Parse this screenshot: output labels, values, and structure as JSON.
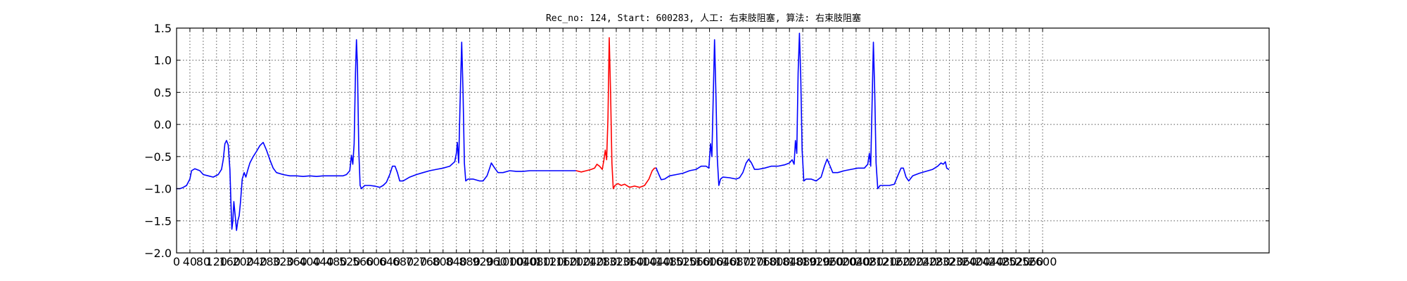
{
  "chart_data": {
    "type": "line",
    "title": "Rec_no: 124, Start: 600283, 人工: 右束肢阻塞, 算法: 右束肢阻塞",
    "xlabel": "",
    "ylabel": "",
    "xlim": [
      0,
      3280
    ],
    "ylim": [
      -2.0,
      1.5
    ],
    "grid": true,
    "x_tick_step": 40,
    "x_tick_labels": [
      "0",
      "40",
      "80",
      "120",
      "160",
      "200",
      "240",
      "280",
      "320",
      "360",
      "400",
      "440",
      "480",
      "520",
      "560",
      "600",
      "640",
      "680",
      "720",
      "760",
      "800",
      "840",
      "880",
      "920",
      "960",
      "1000",
      "1040",
      "1080",
      "1120",
      "1160",
      "1200",
      "1240",
      "1280",
      "1320",
      "1360",
      "1400",
      "1440",
      "1480",
      "1520",
      "1560",
      "1600",
      "1640",
      "1680",
      "1720",
      "1760",
      "1800",
      "1840",
      "1880",
      "1920",
      "1960",
      "2000",
      "2040",
      "2080",
      "2120",
      "2160",
      "2200",
      "2240",
      "2280",
      "2320",
      "2360",
      "2400",
      "2440",
      "2480",
      "2520",
      "2560",
      "2600"
    ],
    "y_ticks": [
      1.5,
      1.0,
      0.5,
      0.0,
      -0.5,
      -1.0,
      -1.5,
      -2.0
    ],
    "y_tick_labels": [
      "1.5",
      "1.0",
      "0.5",
      "0.0",
      "−0.5",
      "−1.0",
      "−1.5",
      "−2.0"
    ],
    "highlight": {
      "x_start": 1200,
      "x_end": 1440,
      "color": "#ff0000"
    },
    "series": [
      {
        "color": "#0000ff",
        "points": [
          [
            0,
            -1.0
          ],
          [
            10,
            -1.0
          ],
          [
            20,
            -0.98
          ],
          [
            30,
            -0.95
          ],
          [
            40,
            -0.85
          ],
          [
            45,
            -0.72
          ],
          [
            55,
            -0.69
          ],
          [
            70,
            -0.72
          ],
          [
            80,
            -0.78
          ],
          [
            95,
            -0.8
          ],
          [
            110,
            -0.82
          ],
          [
            125,
            -0.78
          ],
          [
            135,
            -0.7
          ],
          [
            140,
            -0.55
          ],
          [
            145,
            -0.3
          ],
          [
            150,
            -0.25
          ],
          [
            155,
            -0.32
          ],
          [
            160,
            -0.7
          ],
          [
            163,
            -1.2
          ],
          [
            166,
            -1.63
          ],
          [
            169,
            -1.5
          ],
          [
            172,
            -1.2
          ],
          [
            176,
            -1.42
          ],
          [
            180,
            -1.65
          ],
          [
            184,
            -1.5
          ],
          [
            188,
            -1.42
          ],
          [
            192,
            -1.2
          ],
          [
            197,
            -0.85
          ],
          [
            203,
            -0.75
          ],
          [
            208,
            -0.82
          ],
          [
            213,
            -0.72
          ],
          [
            220,
            -0.6
          ],
          [
            230,
            -0.5
          ],
          [
            240,
            -0.42
          ],
          [
            250,
            -0.33
          ],
          [
            260,
            -0.28
          ],
          [
            270,
            -0.4
          ],
          [
            280,
            -0.55
          ],
          [
            290,
            -0.68
          ],
          [
            300,
            -0.75
          ],
          [
            320,
            -0.78
          ],
          [
            340,
            -0.8
          ],
          [
            360,
            -0.8
          ],
          [
            380,
            -0.81
          ],
          [
            400,
            -0.8
          ],
          [
            420,
            -0.81
          ],
          [
            440,
            -0.8
          ],
          [
            460,
            -0.8
          ],
          [
            480,
            -0.8
          ],
          [
            500,
            -0.8
          ],
          [
            510,
            -0.78
          ],
          [
            520,
            -0.72
          ],
          [
            525,
            -0.48
          ],
          [
            529,
            -0.62
          ],
          [
            533,
            -0.3
          ],
          [
            537,
            0.8
          ],
          [
            540,
            1.32
          ],
          [
            543,
            0.9
          ],
          [
            547,
            -0.4
          ],
          [
            551,
            -0.95
          ],
          [
            555,
            -1.0
          ],
          [
            565,
            -0.95
          ],
          [
            580,
            -0.95
          ],
          [
            595,
            -0.96
          ],
          [
            610,
            -0.98
          ],
          [
            620,
            -0.95
          ],
          [
            630,
            -0.9
          ],
          [
            640,
            -0.78
          ],
          [
            648,
            -0.65
          ],
          [
            656,
            -0.65
          ],
          [
            663,
            -0.75
          ],
          [
            670,
            -0.88
          ],
          [
            680,
            -0.88
          ],
          [
            700,
            -0.82
          ],
          [
            720,
            -0.78
          ],
          [
            740,
            -0.75
          ],
          [
            760,
            -0.72
          ],
          [
            780,
            -0.7
          ],
          [
            800,
            -0.68
          ],
          [
            820,
            -0.65
          ],
          [
            835,
            -0.58
          ],
          [
            840,
            -0.45
          ],
          [
            843,
            -0.28
          ],
          [
            847,
            -0.6
          ],
          [
            851,
            0.3
          ],
          [
            856,
            1.28
          ],
          [
            860,
            0.5
          ],
          [
            864,
            -0.6
          ],
          [
            868,
            -0.88
          ],
          [
            875,
            -0.85
          ],
          [
            890,
            -0.85
          ],
          [
            910,
            -0.88
          ],
          [
            920,
            -0.88
          ],
          [
            932,
            -0.8
          ],
          [
            940,
            -0.68
          ],
          [
            945,
            -0.6
          ],
          [
            955,
            -0.68
          ],
          [
            965,
            -0.75
          ],
          [
            980,
            -0.75
          ],
          [
            1000,
            -0.72
          ],
          [
            1020,
            -0.73
          ],
          [
            1040,
            -0.73
          ],
          [
            1060,
            -0.72
          ],
          [
            1080,
            -0.72
          ],
          [
            1100,
            -0.72
          ],
          [
            1120,
            -0.72
          ],
          [
            1140,
            -0.72
          ],
          [
            1160,
            -0.72
          ],
          [
            1180,
            -0.72
          ],
          [
            1200,
            -0.72
          ]
        ]
      },
      {
        "color": "#ff0000",
        "points": [
          [
            1200,
            -0.72
          ],
          [
            1215,
            -0.74
          ],
          [
            1230,
            -0.72
          ],
          [
            1245,
            -0.7
          ],
          [
            1255,
            -0.68
          ],
          [
            1262,
            -0.62
          ],
          [
            1270,
            -0.65
          ],
          [
            1278,
            -0.7
          ],
          [
            1283,
            -0.55
          ],
          [
            1287,
            -0.4
          ],
          [
            1291,
            -0.55
          ],
          [
            1295,
            0.1
          ],
          [
            1299,
            1.35
          ],
          [
            1303,
            0.5
          ],
          [
            1307,
            -0.6
          ],
          [
            1311,
            -1.0
          ],
          [
            1316,
            -0.95
          ],
          [
            1325,
            -0.92
          ],
          [
            1335,
            -0.95
          ],
          [
            1345,
            -0.93
          ],
          [
            1360,
            -0.98
          ],
          [
            1375,
            -0.96
          ],
          [
            1390,
            -0.98
          ],
          [
            1405,
            -0.95
          ],
          [
            1418,
            -0.85
          ],
          [
            1428,
            -0.72
          ],
          [
            1435,
            -0.68
          ],
          [
            1440,
            -0.68
          ]
        ]
      },
      {
        "color": "#0000ff",
        "points": [
          [
            1440,
            -0.68
          ],
          [
            1448,
            -0.78
          ],
          [
            1455,
            -0.86
          ],
          [
            1465,
            -0.85
          ],
          [
            1480,
            -0.8
          ],
          [
            1500,
            -0.78
          ],
          [
            1520,
            -0.76
          ],
          [
            1540,
            -0.72
          ],
          [
            1560,
            -0.7
          ],
          [
            1575,
            -0.65
          ],
          [
            1590,
            -0.65
          ],
          [
            1598,
            -0.68
          ],
          [
            1603,
            -0.3
          ],
          [
            1607,
            -0.5
          ],
          [
            1612,
            0.6
          ],
          [
            1615,
            1.32
          ],
          [
            1619,
            0.5
          ],
          [
            1623,
            -0.5
          ],
          [
            1628,
            -0.95
          ],
          [
            1633,
            -0.85
          ],
          [
            1640,
            -0.82
          ],
          [
            1660,
            -0.83
          ],
          [
            1680,
            -0.85
          ],
          [
            1690,
            -0.83
          ],
          [
            1700,
            -0.75
          ],
          [
            1710,
            -0.6
          ],
          [
            1718,
            -0.54
          ],
          [
            1726,
            -0.6
          ],
          [
            1735,
            -0.7
          ],
          [
            1745,
            -0.7
          ],
          [
            1765,
            -0.68
          ],
          [
            1785,
            -0.65
          ],
          [
            1805,
            -0.65
          ],
          [
            1825,
            -0.63
          ],
          [
            1840,
            -0.6
          ],
          [
            1848,
            -0.55
          ],
          [
            1854,
            -0.62
          ],
          [
            1858,
            -0.25
          ],
          [
            1862,
            -0.45
          ],
          [
            1866,
            0.8
          ],
          [
            1870,
            1.42
          ],
          [
            1874,
            0.7
          ],
          [
            1878,
            -0.4
          ],
          [
            1883,
            -0.88
          ],
          [
            1890,
            -0.85
          ],
          [
            1905,
            -0.85
          ],
          [
            1920,
            -0.88
          ],
          [
            1935,
            -0.82
          ],
          [
            1945,
            -0.65
          ],
          [
            1953,
            -0.54
          ],
          [
            1962,
            -0.65
          ],
          [
            1970,
            -0.75
          ],
          [
            1985,
            -0.75
          ],
          [
            2005,
            -0.72
          ],
          [
            2025,
            -0.7
          ],
          [
            2045,
            -0.68
          ],
          [
            2065,
            -0.68
          ],
          [
            2075,
            -0.62
          ],
          [
            2080,
            -0.45
          ],
          [
            2084,
            -0.65
          ],
          [
            2088,
            0.3
          ],
          [
            2092,
            1.28
          ],
          [
            2096,
            0.5
          ],
          [
            2100,
            -0.6
          ],
          [
            2105,
            -1.0
          ],
          [
            2112,
            -0.95
          ],
          [
            2125,
            -0.95
          ],
          [
            2140,
            -0.95
          ],
          [
            2155,
            -0.93
          ],
          [
            2165,
            -0.8
          ],
          [
            2175,
            -0.68
          ],
          [
            2182,
            -0.68
          ],
          [
            2190,
            -0.82
          ],
          [
            2198,
            -0.88
          ],
          [
            2210,
            -0.8
          ],
          [
            2230,
            -0.76
          ],
          [
            2250,
            -0.73
          ],
          [
            2270,
            -0.7
          ],
          [
            2285,
            -0.65
          ],
          [
            2295,
            -0.6
          ],
          [
            2302,
            -0.62
          ],
          [
            2308,
            -0.58
          ],
          [
            2312,
            -0.68
          ],
          [
            2318,
            -0.7
          ]
        ]
      }
    ]
  }
}
